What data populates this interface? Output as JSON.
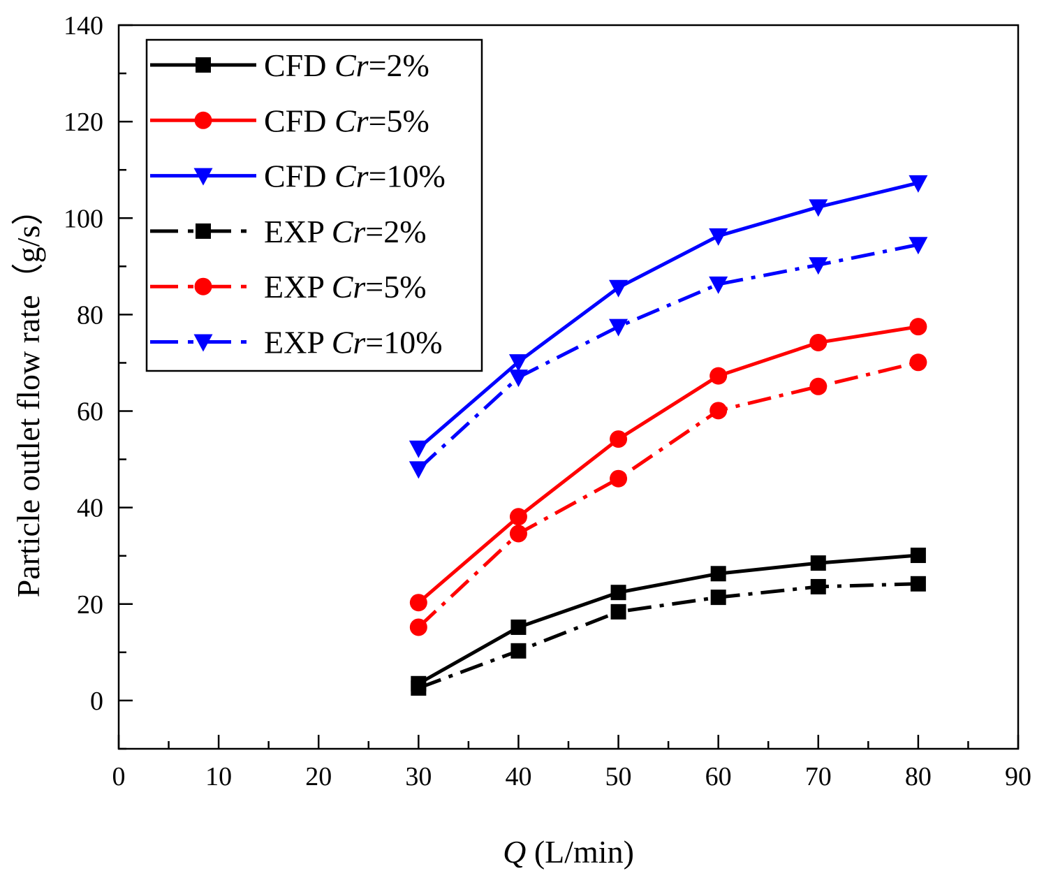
{
  "chart_data": {
    "type": "line",
    "title": "",
    "xlabel": {
      "italic": "Q",
      "rest": " (L/min)"
    },
    "ylabel": "Particle outlet flow rate（g/s）",
    "xlim": [
      0,
      90
    ],
    "ylim": [
      -10,
      140
    ],
    "x_ticks": [
      "0",
      "10",
      "20",
      "30",
      "40",
      "50",
      "60",
      "70",
      "80",
      "90"
    ],
    "y_ticks": [
      "0",
      "20",
      "40",
      "60",
      "80",
      "100",
      "120",
      "140"
    ],
    "x": [
      30,
      40,
      50,
      60,
      70,
      80
    ],
    "grid": false,
    "legend_position": "top-left",
    "series": [
      {
        "name": "CFD Cr=2%",
        "label_prefix": "CFD ",
        "label_italic": "Cr",
        "label_suffix": "=2%",
        "color": "#000000",
        "marker": "square",
        "dash": "solid",
        "values": [
          3.5,
          15.2,
          22.4,
          26.3,
          28.5,
          30.1
        ]
      },
      {
        "name": "CFD Cr=5%",
        "label_prefix": "CFD ",
        "label_italic": "Cr",
        "label_suffix": "=5%",
        "color": "#ff0000",
        "marker": "circle",
        "dash": "solid",
        "values": [
          20.3,
          38.1,
          54.2,
          67.3,
          74.2,
          77.5
        ]
      },
      {
        "name": "CFD Cr=10%",
        "label_prefix": "CFD ",
        "label_italic": "Cr",
        "label_suffix": "=10%",
        "color": "#0000ff",
        "marker": "triangle",
        "dash": "solid",
        "values": [
          52.3,
          70.2,
          85.6,
          96.3,
          102.3,
          107.3
        ]
      },
      {
        "name": "EXP Cr=2%",
        "label_prefix": "EXP ",
        "label_italic": "Cr",
        "label_suffix": "=2%",
        "color": "#000000",
        "marker": "square",
        "dash": "dashdot",
        "values": [
          2.6,
          10.3,
          18.4,
          21.4,
          23.6,
          24.2
        ]
      },
      {
        "name": "EXP Cr=5%",
        "label_prefix": "EXP ",
        "label_italic": "Cr",
        "label_suffix": "=5%",
        "color": "#ff0000",
        "marker": "circle",
        "dash": "dashdot",
        "values": [
          15.2,
          34.6,
          46.0,
          60.1,
          65.1,
          70.1
        ]
      },
      {
        "name": "EXP Cr=10%",
        "label_prefix": "EXP ",
        "label_italic": "Cr",
        "label_suffix": "=10%",
        "color": "#0000ff",
        "marker": "triangle",
        "dash": "dashdot",
        "values": [
          48.0,
          67.0,
          77.5,
          86.3,
          90.3,
          94.5
        ]
      }
    ]
  }
}
